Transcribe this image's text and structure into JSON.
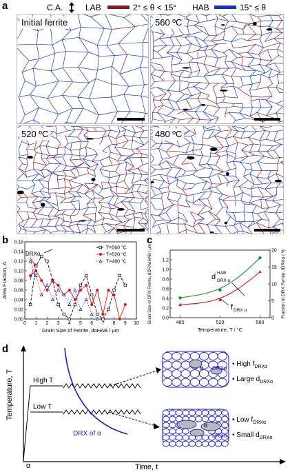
{
  "panel_a": {
    "letter": "a",
    "legend": {
      "ca_label": "C.A.",
      "lab_label": "LAB",
      "lab_range": "2° ≤ θ < 15°",
      "hab_label": "HAB",
      "hab_range": "15° ≤ θ",
      "lab_color": "#8b1a1a",
      "hab_color": "#1030d0"
    },
    "maps": [
      {
        "label": "Initial ferrite"
      },
      {
        "label": "560 ºC"
      },
      {
        "label": "520 ºC"
      },
      {
        "label": "480 ºC"
      }
    ]
  },
  "panel_b": {
    "letter": "b",
    "annotation": "DRXα"
  },
  "panel_c": {
    "letter": "c",
    "curve_label_d": "d",
    "curve_label_d_sup": "HAB",
    "curve_label_d_sub": "DRX α",
    "curve_label_f": "f",
    "curve_label_f_sub": "DRX α"
  },
  "panel_d": {
    "letter": "d",
    "ylabel": "Temperature, T",
    "xlabel": "Time, t",
    "origin_label": "α",
    "high_t_label": "High T",
    "low_t_label": "Low T",
    "drx_label": "DRX of α",
    "high_t_points": [
      "• High f",
      "• Large d"
    ],
    "high_t_sub": "DRXα",
    "low_t_points": [
      "• Low f",
      "• Small d"
    ],
    "low_t_sub": "DRXα",
    "grain_alpha": "α",
    "grain_drx": "DRXα"
  },
  "chart_data": [
    {
      "id": "b",
      "type": "line",
      "xlabel": "Grain Size of Ferrite, dαHAB / μm",
      "ylabel": "Area Fraction, A",
      "xlim": [
        0,
        10
      ],
      "ylim": [
        0,
        0.16
      ],
      "xticks": [
        "0",
        "1",
        "2",
        "3",
        "4",
        "5",
        "6",
        "7",
        "8",
        "9",
        "10"
      ],
      "yticks": [
        "0.00",
        "0.02",
        "0.04",
        "0.06",
        "0.08",
        "0.10",
        "0.12",
        "0.14",
        "0.16"
      ],
      "legend_position": "top-right",
      "series": [
        {
          "name": "T=560 °C",
          "color": "#000000",
          "marker": "square",
          "dash": "4,2",
          "x": [
            0.5,
            1.0,
            1.5,
            2.0,
            2.5,
            3.0,
            3.5,
            4.0,
            4.5,
            5.0,
            5.5,
            6.0,
            6.5,
            7.0,
            7.5,
            8.0,
            8.5,
            9.0
          ],
          "y": [
            0.03,
            0.11,
            0.13,
            0.12,
            0.08,
            0.03,
            0.01,
            0.0,
            0.03,
            0.07,
            0.09,
            0.05,
            0.01,
            0.0,
            0.02,
            0.06,
            0.09,
            0.07
          ]
        },
        {
          "name": "T=520 °C",
          "color": "#e01010",
          "marker": "circle",
          "dash": "",
          "x": [
            0.5,
            1.0,
            1.5,
            2.0,
            2.5,
            3.0,
            3.5,
            4.0,
            4.5,
            5.0,
            5.5,
            6.0,
            6.5,
            7.0,
            7.5,
            8.0,
            8.5,
            9.0
          ],
          "y": [
            0.09,
            0.1,
            0.08,
            0.06,
            0.08,
            0.07,
            0.05,
            0.06,
            0.04,
            0.06,
            0.07,
            0.03,
            0.06,
            0.01,
            0.06,
            0.05,
            0.0,
            0.03
          ]
        },
        {
          "name": "T=480 °C",
          "color": "#1010d0",
          "marker": "triangle",
          "dash": "1,2",
          "x": [
            0.5,
            1.0,
            1.5,
            2.0,
            2.5,
            3.0,
            3.5,
            4.0,
            4.5,
            5.0,
            5.5,
            6.0,
            6.5
          ],
          "y": [
            0.12,
            0.09,
            0.05,
            0.07,
            0.04,
            0.06,
            0.05,
            0.03,
            0.06,
            0.02,
            0.04,
            0.01,
            0.0
          ]
        }
      ]
    },
    {
      "id": "c",
      "type": "line",
      "xlabel": "Temperature, T / °C",
      "ylabel_left": "Grain Size of DRX Ferrite, dDRXαHAB / μm",
      "ylabel_right": "Fraction of DRX Ferrite, fDRXα / %",
      "x": [
        480,
        520,
        560
      ],
      "xlim": [
        470,
        570
      ],
      "xticks": [
        "480",
        "520",
        "560"
      ],
      "ylim_left": [
        0,
        1.4
      ],
      "yticks_left": [
        "0.0",
        "0.2",
        "0.4",
        "0.6",
        "0.8",
        "1.0",
        "1.2"
      ],
      "ylim_right": [
        0,
        20
      ],
      "yticks_right": [
        "0",
        "5",
        "10",
        "15",
        "20"
      ],
      "series": [
        {
          "name": "dDRXαHAB",
          "axis": "left",
          "color": "#1f8b2e",
          "values": [
            0.41,
            0.57,
            1.24
          ]
        },
        {
          "name": "fDRXα",
          "axis": "right",
          "color": "#e01010",
          "values": [
            3.8,
            5.3,
            13.6
          ]
        }
      ]
    }
  ]
}
